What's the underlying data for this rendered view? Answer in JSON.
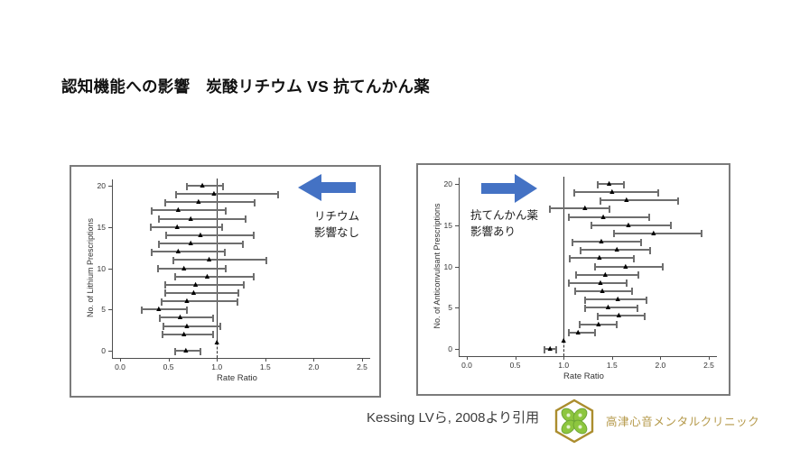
{
  "slide": {
    "title": "認知機能への影響　炭酸リチウム VS 抗てんかん薬",
    "citation": "Kessing LVら, 2008より引用",
    "clinic_name": "高津心音メンタルクリニック",
    "clinic_name_color": "#b5994a",
    "accent_arrow_color": "#4472c4",
    "logo": {
      "icon": "hexagon-clover-logo",
      "border_color": "#ab8d2e",
      "leaf_color": "#8dc63f",
      "leaf_stroke_color": "#6aa233"
    }
  },
  "chart_data": [
    {
      "type": "scatter",
      "subtype": "forest-plot",
      "panel": "left",
      "xlabel": "Rate Ratio",
      "ylabel": "No. of Lithium Prescriptions",
      "xlim": [
        0.0,
        2.5
      ],
      "ylim": [
        0,
        20
      ],
      "x_ticks": [
        "0.0",
        "0.5",
        "1.0",
        "1.5",
        "2.0",
        "2.5"
      ],
      "y_ticks": [
        "0",
        "5",
        "10",
        "15",
        "20"
      ],
      "reference_line_x": 1.0,
      "annotation": {
        "arrow_direction": "left",
        "label_lines": [
          "リチウム",
          "影響なし"
        ]
      },
      "points": [
        {
          "y": 20,
          "lo": 0.69,
          "mid": 0.85,
          "hi": 1.06
        },
        {
          "y": 19,
          "lo": 0.58,
          "mid": 0.97,
          "hi": 1.63
        },
        {
          "y": 18,
          "lo": 0.47,
          "mid": 0.81,
          "hi": 1.39
        },
        {
          "y": 17,
          "lo": 0.33,
          "mid": 0.6,
          "hi": 1.09
        },
        {
          "y": 16,
          "lo": 0.4,
          "mid": 0.73,
          "hi": 1.3
        },
        {
          "y": 15,
          "lo": 0.32,
          "mid": 0.59,
          "hi": 1.05
        },
        {
          "y": 14,
          "lo": 0.48,
          "mid": 0.83,
          "hi": 1.38
        },
        {
          "y": 13,
          "lo": 0.4,
          "mid": 0.73,
          "hi": 1.27
        },
        {
          "y": 12,
          "lo": 0.33,
          "mid": 0.6,
          "hi": 1.08
        },
        {
          "y": 11,
          "lo": 0.55,
          "mid": 0.92,
          "hi": 1.51
        },
        {
          "y": 10,
          "lo": 0.39,
          "mid": 0.66,
          "hi": 1.09
        },
        {
          "y": 9,
          "lo": 0.57,
          "mid": 0.9,
          "hi": 1.38
        },
        {
          "y": 8,
          "lo": 0.47,
          "mid": 0.78,
          "hi": 1.28
        },
        {
          "y": 7,
          "lo": 0.47,
          "mid": 0.76,
          "hi": 1.22
        },
        {
          "y": 6,
          "lo": 0.43,
          "mid": 0.69,
          "hi": 1.21
        },
        {
          "y": 5,
          "lo": 0.22,
          "mid": 0.4,
          "hi": 0.69
        },
        {
          "y": 4,
          "lo": 0.41,
          "mid": 0.62,
          "hi": 0.96
        },
        {
          "y": 3,
          "lo": 0.45,
          "mid": 0.69,
          "hi": 1.04
        },
        {
          "y": 2,
          "lo": 0.44,
          "mid": 0.66,
          "hi": 0.96
        },
        {
          "y": 1,
          "lo": 1.0,
          "mid": 1.0,
          "hi": 1.0,
          "reference": true
        },
        {
          "y": 0,
          "lo": 0.57,
          "mid": 0.68,
          "hi": 0.83
        }
      ]
    },
    {
      "type": "scatter",
      "subtype": "forest-plot",
      "panel": "right",
      "xlabel": "Rate Ratio",
      "ylabel": "No. of Anticonvulsant Prescriptions",
      "xlim": [
        0.0,
        2.5
      ],
      "ylim": [
        0,
        20
      ],
      "x_ticks": [
        "0.0",
        "0.5",
        "1.0",
        "1.5",
        "2.0",
        "2.5"
      ],
      "y_ticks": [
        "0",
        "5",
        "10",
        "15",
        "20"
      ],
      "reference_line_x": 1.0,
      "annotation": {
        "arrow_direction": "right",
        "label_lines": [
          "抗てんかん薬",
          "影響あり"
        ]
      },
      "points": [
        {
          "y": 20,
          "lo": 1.35,
          "mid": 1.47,
          "hi": 1.62
        },
        {
          "y": 19,
          "lo": 1.11,
          "mid": 1.5,
          "hi": 1.98
        },
        {
          "y": 18,
          "lo": 1.38,
          "mid": 1.65,
          "hi": 2.18
        },
        {
          "y": 17,
          "lo": 0.86,
          "mid": 1.22,
          "hi": 1.47
        },
        {
          "y": 16,
          "lo": 1.05,
          "mid": 1.41,
          "hi": 1.88
        },
        {
          "y": 15,
          "lo": 1.29,
          "mid": 1.67,
          "hi": 2.11
        },
        {
          "y": 14,
          "lo": 1.52,
          "mid": 1.93,
          "hi": 2.43
        },
        {
          "y": 13,
          "lo": 1.09,
          "mid": 1.39,
          "hi": 1.8
        },
        {
          "y": 12,
          "lo": 1.18,
          "mid": 1.55,
          "hi": 1.89
        },
        {
          "y": 11,
          "lo": 1.06,
          "mid": 1.37,
          "hi": 1.73
        },
        {
          "y": 10,
          "lo": 1.32,
          "mid": 1.64,
          "hi": 2.02
        },
        {
          "y": 9,
          "lo": 1.13,
          "mid": 1.43,
          "hi": 1.77
        },
        {
          "y": 8,
          "lo": 1.05,
          "mid": 1.38,
          "hi": 1.65
        },
        {
          "y": 7,
          "lo": 1.12,
          "mid": 1.4,
          "hi": 1.71
        },
        {
          "y": 6,
          "lo": 1.22,
          "mid": 1.56,
          "hi": 1.86
        },
        {
          "y": 5,
          "lo": 1.22,
          "mid": 1.46,
          "hi": 1.76
        },
        {
          "y": 4,
          "lo": 1.35,
          "mid": 1.57,
          "hi": 1.84
        },
        {
          "y": 3,
          "lo": 1.17,
          "mid": 1.36,
          "hi": 1.55
        },
        {
          "y": 2,
          "lo": 1.05,
          "mid": 1.15,
          "hi": 1.32
        },
        {
          "y": 1,
          "lo": 1.0,
          "mid": 1.0,
          "hi": 1.0,
          "reference": true
        },
        {
          "y": 0,
          "lo": 0.8,
          "mid": 0.86,
          "hi": 0.92
        }
      ]
    }
  ]
}
